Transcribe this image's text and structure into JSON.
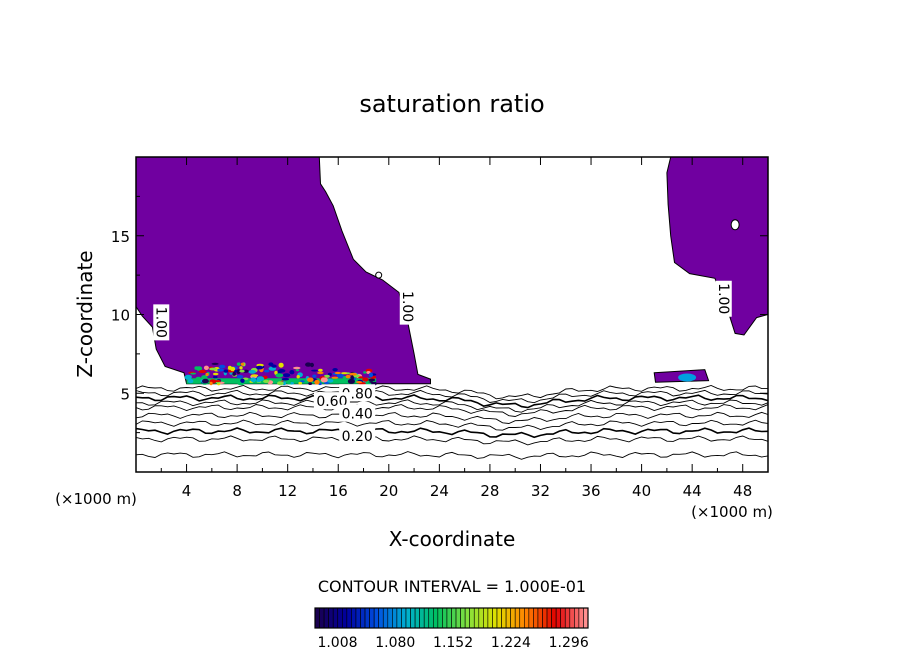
{
  "chart_data": {
    "type": "heatmap",
    "title": "saturation ratio",
    "xlabel": "X-coordinate",
    "ylabel": "Z-coordinate",
    "x_unit_label": "(×1000 m)",
    "y_unit_label": "(×1000 m)",
    "xlim": [
      0,
      50
    ],
    "ylim": [
      0,
      20
    ],
    "x_ticks": [
      "4",
      "8",
      "12",
      "16",
      "20",
      "24",
      "28",
      "32",
      "36",
      "40",
      "44",
      "48"
    ],
    "y_ticks": [
      "5",
      "10",
      "15"
    ],
    "contour_interval_text": "CONTOUR INTERVAL = 1.000E-01",
    "contour_labels": [
      {
        "text": "0.80",
        "x": 17.5,
        "z": 5.0
      },
      {
        "text": "0.60",
        "x": 15.5,
        "z": 4.5
      },
      {
        "text": "0.40",
        "x": 17.5,
        "z": 3.7
      },
      {
        "text": "0.20",
        "x": 17.5,
        "z": 2.3
      },
      {
        "text": "1.00",
        "x": 21.5,
        "z": 10.5
      },
      {
        "text": "1.00",
        "x": 46.5,
        "z": 11.0
      },
      {
        "text": "1.00",
        "x": 2.0,
        "z": 9.5
      }
    ],
    "colorbar_ticks": [
      "1.008",
      "1.080",
      "1.152",
      "1.224",
      "1.296"
    ],
    "colorbar_range": [
      0.98,
      1.32
    ],
    "fill_color_supersaturated": "#7000a0",
    "colormap": [
      "#1a0050",
      "#0000a0",
      "#0050e0",
      "#00b0d0",
      "#00c060",
      "#80e040",
      "#e0e000",
      "#ff8000",
      "#e00000",
      "#ff9090"
    ]
  }
}
